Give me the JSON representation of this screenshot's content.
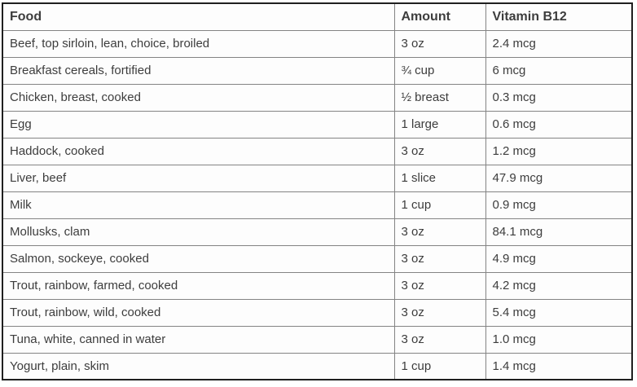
{
  "chart_data": {
    "type": "table",
    "columns": [
      "Food",
      "Amount",
      "Vitamin B12"
    ],
    "rows": [
      [
        "Beef, top sirloin, lean, choice, broiled",
        "3 oz",
        "2.4 mcg"
      ],
      [
        "Breakfast cereals, fortified",
        "¾ cup",
        "6 mcg"
      ],
      [
        "Chicken, breast, cooked",
        "½ breast",
        "0.3 mcg"
      ],
      [
        "Egg",
        "1 large",
        "0.6 mcg"
      ],
      [
        "Haddock, cooked",
        "3 oz",
        "1.2 mcg"
      ],
      [
        "Liver, beef",
        "1 slice",
        "47.9 mcg"
      ],
      [
        "Milk",
        "1 cup",
        "0.9 mcg"
      ],
      [
        "Mollusks, clam",
        "3 oz",
        "84.1 mcg"
      ],
      [
        "Salmon, sockeye, cooked",
        "3 oz",
        "4.9 mcg"
      ],
      [
        "Trout, rainbow, farmed, cooked",
        "3 oz",
        "4.2 mcg"
      ],
      [
        "Trout, rainbow, wild, cooked",
        "3 oz",
        "5.4 mcg"
      ],
      [
        "Tuna, white, canned in water",
        "3 oz",
        "1.0 mcg"
      ],
      [
        "Yogurt, plain, skim",
        "1 cup",
        "1.4 mcg"
      ]
    ]
  },
  "colors": {
    "text": "#3d3d3d",
    "outer_border": "#1f1f1f",
    "inner_border": "#848484",
    "cell_background": "#fdfdfd",
    "page_background": "#ffffff"
  }
}
